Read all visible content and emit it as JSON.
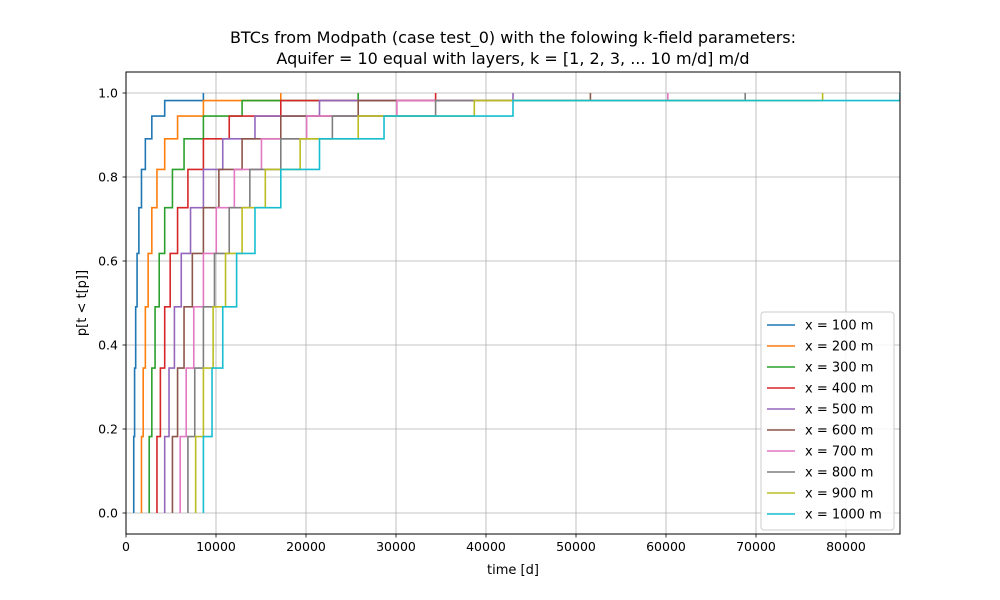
{
  "chart_data": {
    "type": "line",
    "title_lines": [
      "BTCs from Modpath (case test_0) with the folowing k-field parameters:",
      "Aquifer = 10 equal with layers, k = [1, 2, 3, ... 10 m/d] m/d"
    ],
    "xlabel": "time [d]",
    "ylabel": "p[t < t[p]]",
    "xlim": [
      0,
      86000
    ],
    "ylim": [
      -0.05,
      1.05
    ],
    "xticks": [
      0,
      10000,
      20000,
      30000,
      40000,
      50000,
      60000,
      70000,
      80000
    ],
    "yticks": [
      0.0,
      0.2,
      0.4,
      0.6,
      0.8,
      1.0
    ],
    "xtick_labels": [
      "0",
      "10000",
      "20000",
      "30000",
      "40000",
      "50000",
      "60000",
      "70000",
      "80000"
    ],
    "ytick_labels": [
      "0.0",
      "0.2",
      "0.4",
      "0.6",
      "0.8",
      "1.0"
    ],
    "grid": true,
    "legend_position": "lower right",
    "y_levels": [
      0.0,
      0.182,
      0.345,
      0.491,
      0.618,
      0.727,
      0.818,
      0.891,
      0.945,
      0.982,
      1.0
    ],
    "series": [
      {
        "name": "x = 100 m",
        "color": "#1f77b4",
        "x": [
          860,
          955,
          1075,
          1230,
          1430,
          1720,
          2150,
          2870,
          4300,
          8600
        ]
      },
      {
        "name": "x = 200 m",
        "color": "#ff7f0e",
        "x": [
          1720,
          1910,
          2150,
          2460,
          2870,
          3440,
          4300,
          5730,
          8600,
          17200
        ]
      },
      {
        "name": "x = 300 m",
        "color": "#2ca02c",
        "x": [
          2580,
          2870,
          3230,
          3690,
          4300,
          5160,
          6450,
          8600,
          12900,
          25800
        ]
      },
      {
        "name": "x = 400 m",
        "color": "#d62728",
        "x": [
          3440,
          3820,
          4300,
          4910,
          5730,
          6880,
          8600,
          11470,
          17200,
          34400
        ]
      },
      {
        "name": "x = 500 m",
        "color": "#9467bd",
        "x": [
          4300,
          4780,
          5380,
          6140,
          7170,
          8600,
          10750,
          14330,
          21500,
          43000
        ]
      },
      {
        "name": "x = 600 m",
        "color": "#8c564b",
        "x": [
          5160,
          5730,
          6450,
          7370,
          8600,
          10320,
          12900,
          17200,
          25800,
          51600
        ]
      },
      {
        "name": "x = 700 m",
        "color": "#e377c2",
        "x": [
          6020,
          6690,
          7530,
          8600,
          10030,
          12040,
          15050,
          20070,
          30100,
          60200
        ]
      },
      {
        "name": "x = 800 m",
        "color": "#7f7f7f",
        "x": [
          6880,
          7640,
          8600,
          9830,
          11470,
          13760,
          17200,
          22930,
          34400,
          68800
        ]
      },
      {
        "name": "x = 900 m",
        "color": "#bcbd22",
        "x": [
          7740,
          8600,
          9680,
          11060,
          12900,
          15480,
          19350,
          25800,
          38700,
          77400
        ]
      },
      {
        "name": "x = 1000 m",
        "color": "#17becf",
        "x": [
          8600,
          9560,
          10750,
          12290,
          14330,
          17200,
          21500,
          28670,
          43000,
          86000
        ]
      }
    ]
  }
}
